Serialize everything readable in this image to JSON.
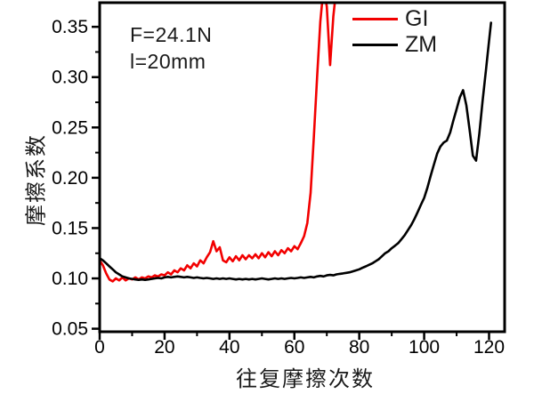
{
  "chart_data": {
    "type": "line",
    "title": "",
    "xlabel": "往复摩擦次数",
    "ylabel": "摩擦系数",
    "xlim": [
      0,
      124.8
    ],
    "ylim": [
      0.047,
      0.374
    ],
    "grid": false,
    "legend_position": "top-right-inside",
    "x_major_ticks": [
      0,
      20,
      40,
      60,
      80,
      100,
      120
    ],
    "x_minor_ticks": [
      10,
      30,
      50,
      70,
      90,
      110
    ],
    "y_major_ticks": [
      0.05,
      0.1,
      0.15,
      0.2,
      0.25,
      0.3,
      0.35
    ],
    "y_minor_ticks": [
      0.075,
      0.125,
      0.175,
      0.225,
      0.275,
      0.325
    ],
    "series": [
      {
        "name": "GI",
        "color": "#f20000",
        "x": [
          0,
          1,
          2,
          3,
          4,
          5,
          6,
          7,
          8,
          9,
          10,
          11,
          12,
          13,
          14,
          15,
          16,
          17,
          18,
          19,
          20,
          21,
          22,
          23,
          24,
          25,
          26,
          27,
          28,
          29,
          30,
          31,
          32,
          33,
          34,
          35,
          36,
          37,
          38,
          39,
          40,
          41,
          42,
          43,
          44,
          45,
          46,
          47,
          48,
          49,
          50,
          51,
          52,
          53,
          54,
          55,
          56,
          57,
          58,
          59,
          60,
          61,
          62,
          63,
          64,
          65,
          66,
          67,
          68,
          69,
          70,
          71,
          72,
          73
        ],
        "y": [
          0.118,
          0.113,
          0.105,
          0.099,
          0.097,
          0.1,
          0.098,
          0.101,
          0.098,
          0.1,
          0.099,
          0.101,
          0.099,
          0.101,
          0.1,
          0.102,
          0.101,
          0.103,
          0.102,
          0.104,
          0.103,
          0.106,
          0.104,
          0.108,
          0.106,
          0.11,
          0.108,
          0.113,
          0.11,
          0.115,
          0.112,
          0.118,
          0.115,
          0.121,
          0.126,
          0.137,
          0.127,
          0.131,
          0.118,
          0.116,
          0.121,
          0.117,
          0.122,
          0.118,
          0.123,
          0.119,
          0.123,
          0.12,
          0.124,
          0.12,
          0.125,
          0.121,
          0.126,
          0.122,
          0.127,
          0.123,
          0.128,
          0.125,
          0.13,
          0.127,
          0.132,
          0.129,
          0.135,
          0.142,
          0.155,
          0.185,
          0.24,
          0.3,
          0.355,
          0.39,
          0.37,
          0.312,
          0.36,
          0.39
        ]
      },
      {
        "name": "ZM",
        "color": "#000000",
        "x": [
          0,
          1,
          2,
          3,
          4,
          5,
          6,
          7,
          8,
          9,
          10,
          11,
          12,
          13,
          14,
          15,
          16,
          17,
          18,
          19,
          20,
          21,
          22,
          23,
          24,
          25,
          26,
          27,
          28,
          29,
          30,
          31,
          32,
          33,
          34,
          35,
          36,
          37,
          38,
          39,
          40,
          41,
          42,
          43,
          44,
          45,
          46,
          47,
          48,
          49,
          50,
          51,
          52,
          53,
          54,
          55,
          56,
          57,
          58,
          59,
          60,
          61,
          62,
          63,
          64,
          65,
          66,
          67,
          68,
          69,
          70,
          71,
          72,
          73,
          74,
          75,
          76,
          77,
          78,
          79,
          80,
          81,
          82,
          83,
          84,
          85,
          86,
          87,
          88,
          89,
          90,
          91,
          92,
          93,
          94,
          95,
          96,
          97,
          98,
          99,
          100,
          101,
          102,
          103,
          104,
          105,
          106,
          107,
          108,
          109,
          110,
          111,
          112,
          113,
          114,
          115,
          116,
          117,
          118,
          119,
          120,
          120.6
        ],
        "y": [
          0.12,
          0.118,
          0.115,
          0.112,
          0.109,
          0.106,
          0.104,
          0.102,
          0.101,
          0.1,
          0.0995,
          0.099,
          0.0985,
          0.099,
          0.0985,
          0.099,
          0.0995,
          0.1,
          0.1005,
          0.1,
          0.101,
          0.1015,
          0.101,
          0.1015,
          0.102,
          0.1015,
          0.101,
          0.1015,
          0.101,
          0.1005,
          0.101,
          0.1005,
          0.1,
          0.1005,
          0.1,
          0.0995,
          0.1,
          0.0995,
          0.1,
          0.0995,
          0.1,
          0.0995,
          0.099,
          0.0995,
          0.099,
          0.0995,
          0.099,
          0.0995,
          0.099,
          0.0995,
          0.1,
          0.0995,
          0.099,
          0.0995,
          0.1,
          0.0995,
          0.1,
          0.0995,
          0.1,
          0.1005,
          0.1,
          0.1005,
          0.101,
          0.1005,
          0.101,
          0.1015,
          0.101,
          0.102,
          0.1025,
          0.102,
          0.103,
          0.1035,
          0.103,
          0.104,
          0.1045,
          0.105,
          0.1055,
          0.106,
          0.107,
          0.108,
          0.109,
          0.1105,
          0.112,
          0.1135,
          0.115,
          0.117,
          0.119,
          0.122,
          0.125,
          0.127,
          0.13,
          0.1325,
          0.135,
          0.139,
          0.143,
          0.148,
          0.153,
          0.159,
          0.166,
          0.173,
          0.18,
          0.19,
          0.202,
          0.213,
          0.224,
          0.231,
          0.235,
          0.237,
          0.245,
          0.257,
          0.268,
          0.28,
          0.287,
          0.272,
          0.248,
          0.222,
          0.217,
          0.244,
          0.276,
          0.306,
          0.336,
          0.354
        ]
      }
    ],
    "annotations": [
      "F=24.1N",
      "l=20mm"
    ]
  },
  "annotation": {
    "line1": "F=24.1N",
    "line2": "l=20mm"
  },
  "legend": {
    "items": [
      {
        "label": "GI"
      },
      {
        "label": "ZM"
      }
    ]
  }
}
